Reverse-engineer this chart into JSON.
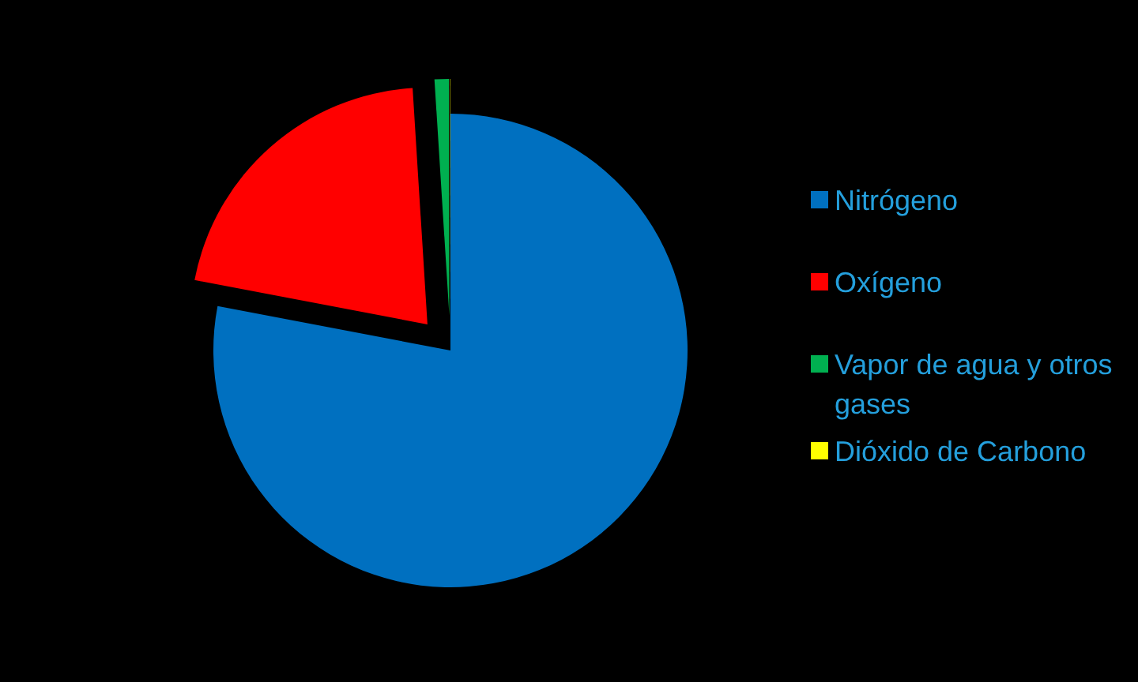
{
  "chart_data": {
    "type": "pie",
    "categories": [
      "Nitrógeno",
      "Oxígeno",
      "Vapor de agua y otros gases",
      "Dióxido de Carbono"
    ],
    "values": [
      78,
      21,
      0.97,
      0.03
    ],
    "colors": [
      "#0070c0",
      "#ff0000",
      "#00b050",
      "#ffff00"
    ],
    "legend": "right"
  }
}
